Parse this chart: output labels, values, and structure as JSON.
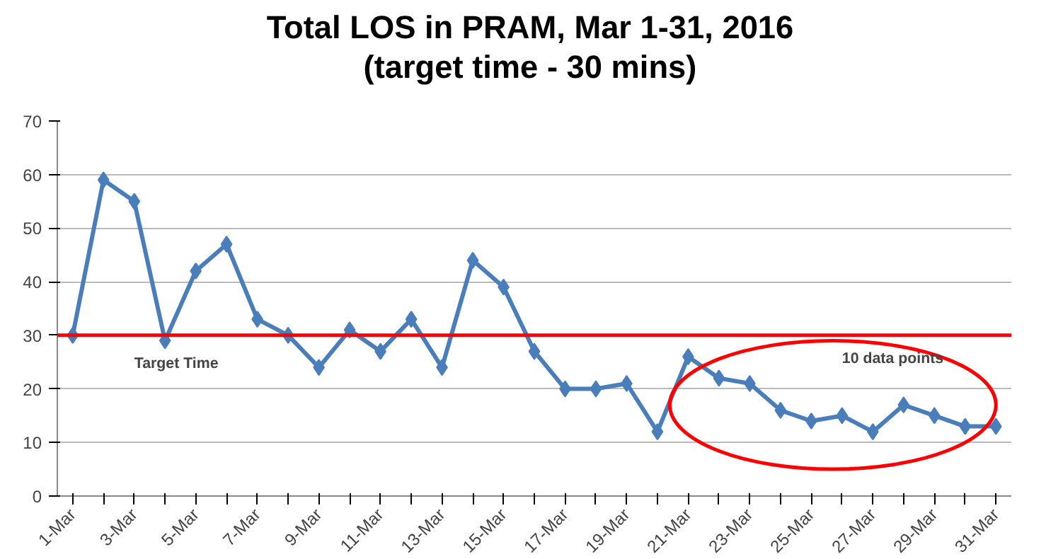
{
  "chart_data": {
    "type": "line",
    "title": "Total LOS in PRAM, Mar 1-31, 2016\n(target time - 30 mins)",
    "categories": [
      "1-Mar",
      null,
      "3-Mar",
      null,
      "5-Mar",
      null,
      "7-Mar",
      null,
      "9-Mar",
      null,
      "11-Mar",
      null,
      "13-Mar",
      null,
      "15-Mar",
      null,
      "17-Mar",
      null,
      "19-Mar",
      null,
      "21-Mar",
      null,
      "23-Mar",
      null,
      "25-Mar",
      null,
      "27-Mar",
      null,
      "29-Mar",
      null,
      "31-Mar"
    ],
    "series": [
      {
        "color": "#4a7ebb",
        "values": [
          30,
          59,
          55,
          29,
          42,
          47,
          33,
          30,
          24,
          31,
          27,
          33,
          24,
          44,
          39,
          27,
          20,
          20,
          21,
          12,
          26,
          22,
          21,
          16,
          14,
          15,
          12,
          17,
          15,
          13,
          13
        ]
      }
    ],
    "ylim": [
      0,
      70
    ],
    "yticks": [
      0,
      10,
      20,
      30,
      40,
      50,
      60,
      70
    ],
    "grid": "y",
    "marker": "diamond",
    "line_style": "solid",
    "ref_lines": [
      {
        "axis": "y",
        "value": 30,
        "label": "Target Time",
        "color": "#ff0000",
        "line_style": "solid"
      }
    ],
    "annotations": [
      "10 data points"
    ]
  }
}
